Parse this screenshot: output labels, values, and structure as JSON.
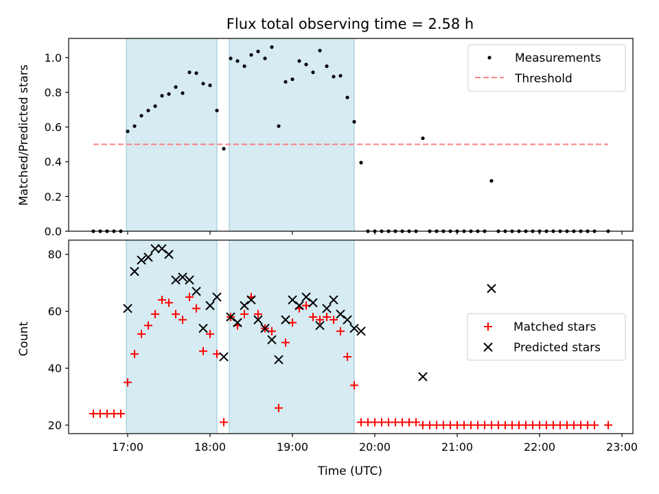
{
  "chart_data": [
    {
      "type": "scatter",
      "title": "Flux total observing time = 2.58 h",
      "xlabel": "",
      "ylabel": "Matched/Predicted stars",
      "xlim": [
        "16:17",
        "23:08"
      ],
      "ylim": [
        0,
        1.11
      ],
      "x_tick_labels": [
        "17:00",
        "18:00",
        "19:00",
        "20:00",
        "21:00",
        "22:00",
        "23:00"
      ],
      "y_ticks": [
        "0.0",
        "0.2",
        "0.4",
        "0.6",
        "0.8",
        "1.0"
      ],
      "grid": false,
      "legend_position": "upper right",
      "shaded_intervals": [
        [
          "16:59",
          "18:05"
        ],
        [
          "18:14",
          "19:45"
        ]
      ],
      "threshold": {
        "name": "Threshold",
        "value": 0.5,
        "x_range": [
          "16:35",
          "22:50"
        ],
        "color": "#ff7f7f",
        "style": "dashed"
      },
      "series": [
        {
          "name": "Measurements",
          "color": "#000000",
          "marker": "dot",
          "x": [
            "16:35",
            "16:40",
            "16:45",
            "16:50",
            "16:55",
            "17:00",
            "17:05",
            "17:10",
            "17:15",
            "17:20",
            "17:25",
            "17:30",
            "17:35",
            "17:40",
            "17:45",
            "17:50",
            "17:55",
            "18:00",
            "18:05",
            "18:10",
            "18:15",
            "18:20",
            "18:25",
            "18:30",
            "18:35",
            "18:40",
            "18:45",
            "18:50",
            "18:55",
            "19:00",
            "19:05",
            "19:10",
            "19:15",
            "19:20",
            "19:25",
            "19:30",
            "19:35",
            "19:40",
            "19:45",
            "19:50",
            "19:55",
            "20:00",
            "20:05",
            "20:10",
            "20:15",
            "20:20",
            "20:25",
            "20:30",
            "20:35",
            "20:40",
            "20:45",
            "20:50",
            "20:55",
            "21:00",
            "21:05",
            "21:10",
            "21:15",
            "21:20",
            "21:25",
            "21:30",
            "21:35",
            "21:40",
            "21:45",
            "21:50",
            "21:55",
            "22:00",
            "22:05",
            "22:10",
            "22:15",
            "22:20",
            "22:25",
            "22:30",
            "22:35",
            "22:40",
            "22:50"
          ],
          "y": [
            0,
            0,
            0,
            0,
            0,
            0.575,
            0.605,
            0.665,
            0.695,
            0.72,
            0.78,
            0.79,
            0.83,
            0.795,
            0.915,
            0.91,
            0.85,
            0.84,
            0.695,
            0.475,
            0.995,
            0.98,
            0.95,
            1.015,
            1.035,
            0.995,
            1.06,
            0.605,
            0.86,
            0.875,
            0.98,
            0.96,
            0.915,
            1.04,
            0.95,
            0.89,
            0.895,
            0.77,
            0.63,
            0.395,
            0,
            0,
            0,
            0,
            0,
            0,
            0,
            0,
            0.535,
            0,
            0,
            0,
            0,
            0,
            0,
            0,
            0,
            0,
            0.29,
            0,
            0,
            0,
            0,
            0,
            0,
            0,
            0,
            0,
            0,
            0,
            0,
            0,
            0,
            0,
            0
          ]
        }
      ]
    },
    {
      "type": "scatter",
      "title": "",
      "xlabel": "Time (UTC)",
      "ylabel": "Count",
      "xlim": [
        "16:17",
        "23:08"
      ],
      "ylim": [
        17,
        85
      ],
      "x_tick_labels": [
        "17:00",
        "18:00",
        "19:00",
        "20:00",
        "21:00",
        "22:00",
        "23:00"
      ],
      "y_ticks": [
        "20",
        "40",
        "60",
        "80"
      ],
      "grid": false,
      "legend_position": "center right",
      "shaded_intervals": [
        [
          "16:59",
          "18:05"
        ],
        [
          "18:14",
          "19:45"
        ]
      ],
      "series": [
        {
          "name": "Matched stars",
          "color": "#ff0000",
          "marker": "plus",
          "x": [
            "16:35",
            "16:40",
            "16:45",
            "16:50",
            "16:55",
            "17:00",
            "17:05",
            "17:10",
            "17:15",
            "17:20",
            "17:25",
            "17:30",
            "17:35",
            "17:40",
            "17:45",
            "17:50",
            "17:55",
            "18:00",
            "18:05",
            "18:10",
            "18:15",
            "18:20",
            "18:25",
            "18:30",
            "18:35",
            "18:40",
            "18:45",
            "18:50",
            "18:55",
            "19:00",
            "19:05",
            "19:10",
            "19:15",
            "19:20",
            "19:25",
            "19:30",
            "19:35",
            "19:40",
            "19:45",
            "19:50",
            "19:55",
            "20:00",
            "20:05",
            "20:10",
            "20:15",
            "20:20",
            "20:25",
            "20:30",
            "20:35",
            "20:40",
            "20:45",
            "20:50",
            "20:55",
            "21:00",
            "21:05",
            "21:10",
            "21:15",
            "21:20",
            "21:25",
            "21:30",
            "21:35",
            "21:40",
            "21:45",
            "21:50",
            "21:55",
            "22:00",
            "22:05",
            "22:10",
            "22:15",
            "22:20",
            "22:25",
            "22:30",
            "22:35",
            "22:40",
            "22:50"
          ],
          "y": [
            24,
            24,
            24,
            24,
            24,
            35,
            45,
            52,
            55,
            59,
            64,
            63,
            59,
            57,
            65,
            61,
            46,
            52,
            45,
            21,
            58,
            55,
            59,
            65,
            59,
            54,
            53,
            26,
            49,
            56,
            61,
            62,
            58,
            57,
            58,
            57,
            53,
            44,
            34,
            21,
            21,
            21,
            21,
            21,
            21,
            21,
            21,
            21,
            20,
            20,
            20,
            20,
            20,
            20,
            20,
            20,
            20,
            20,
            20,
            20,
            20,
            20,
            20,
            20,
            20,
            20,
            20,
            20,
            20,
            20,
            20,
            20,
            20,
            20,
            20
          ]
        },
        {
          "name": "Predicted stars",
          "color": "#000000",
          "marker": "x",
          "x": [
            "17:00",
            "17:05",
            "17:10",
            "17:15",
            "17:20",
            "17:25",
            "17:30",
            "17:35",
            "17:40",
            "17:45",
            "17:50",
            "17:55",
            "18:00",
            "18:05",
            "18:10",
            "18:15",
            "18:20",
            "18:25",
            "18:30",
            "18:35",
            "18:40",
            "18:45",
            "18:50",
            "18:55",
            "19:00",
            "19:05",
            "19:10",
            "19:15",
            "19:20",
            "19:25",
            "19:30",
            "19:35",
            "19:40",
            "19:45",
            "19:50",
            "20:35",
            "21:25"
          ],
          "y": [
            61,
            74,
            78,
            79,
            82,
            82,
            80,
            71,
            72,
            71,
            67,
            54,
            62,
            65,
            44,
            58,
            56,
            62,
            64,
            57,
            54,
            50,
            43,
            57,
            64,
            62,
            65,
            63,
            55,
            61,
            64,
            59,
            57,
            54,
            53,
            37,
            68
          ]
        }
      ]
    }
  ]
}
